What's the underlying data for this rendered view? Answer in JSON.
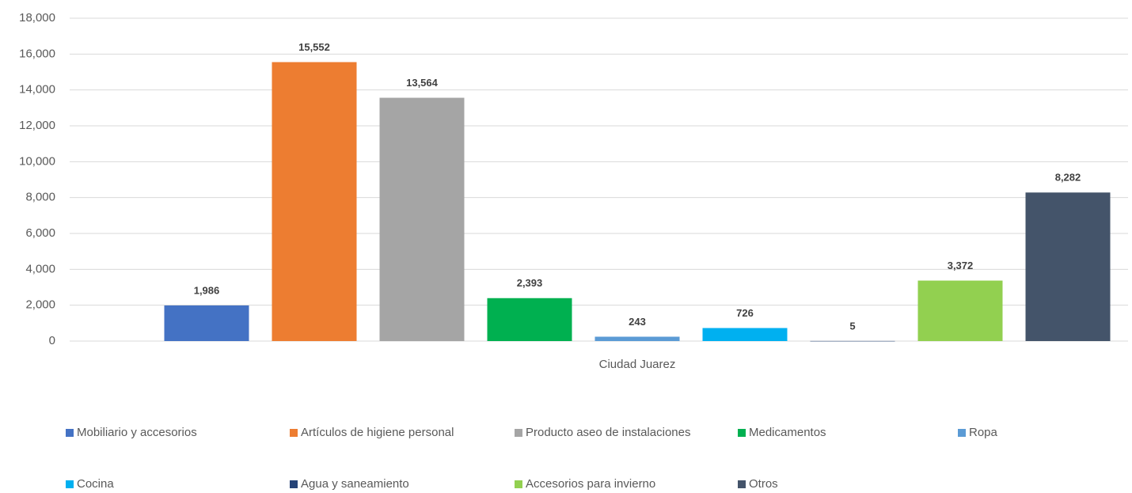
{
  "chart_data": {
    "type": "bar",
    "categories": [
      "Ciudad Juarez"
    ],
    "series": [
      {
        "name": "Mobiliario y accesorios",
        "color": "#4472c4",
        "values": [
          1986
        ],
        "value_labels": [
          "1,986"
        ]
      },
      {
        "name": "Artículos de higiene personal",
        "color": "#ed7d31",
        "values": [
          15552
        ],
        "value_labels": [
          "15,552"
        ]
      },
      {
        "name": "Producto aseo de instalaciones",
        "color": "#a5a5a5",
        "values": [
          13564
        ],
        "value_labels": [
          "13,564"
        ]
      },
      {
        "name": "Medicamentos",
        "color": "#00b050",
        "values": [
          2393
        ],
        "value_labels": [
          "2,393"
        ]
      },
      {
        "name": "Ropa",
        "color": "#5b9bd5",
        "values": [
          243
        ]
      },
      {
        "name": "Cocina",
        "color": "#00b0f0",
        "values": [
          726
        ]
      },
      {
        "name": "Agua y saneamiento",
        "color": "#264478",
        "values": [
          5
        ]
      },
      {
        "name": "Accesorios para invierno",
        "color": "#92d050",
        "values": [
          3372
        ],
        "value_labels": [
          "3,372"
        ]
      },
      {
        "name": "Otros",
        "color": "#44546a",
        "values": [
          8282
        ],
        "value_labels": [
          "8,282"
        ]
      }
    ],
    "ylim": [
      0,
      18000
    ],
    "yticks": [
      0,
      {
        "value": 2000,
        "label": "2,000"
      },
      {
        "value": 4000,
        "label": "4,000"
      },
      {
        "value": 6000,
        "label": "6,000"
      },
      {
        "value": 8000,
        "label": "8,000"
      },
      {
        "value": 10000,
        "label": "10,000"
      },
      {
        "value": 12000,
        "label": "12,000"
      },
      {
        "value": 14000,
        "label": "14,000"
      },
      {
        "value": 16000,
        "label": "16,000"
      },
      {
        "value": 18000,
        "label": "18,000"
      }
    ],
    "grid": true,
    "legend": "bottom"
  }
}
